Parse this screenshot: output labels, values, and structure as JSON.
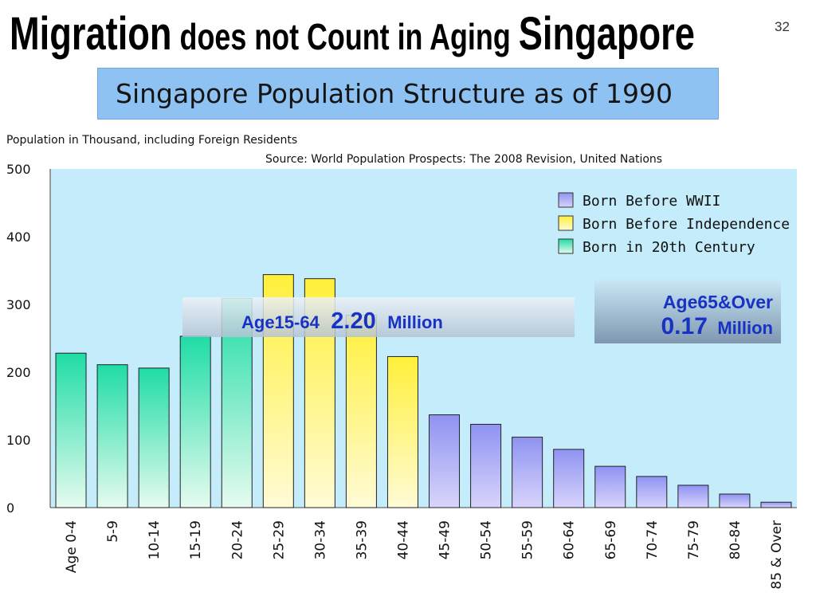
{
  "slide": {
    "title_part1": "Migration",
    "title_part2": " does not Count in Aging ",
    "title_part3": "Singapore",
    "page_number": "32",
    "subtitle": "Singapore Population Structure as of 1990"
  },
  "chart_data": {
    "type": "bar",
    "ylabel": "Population in Thousand, including Foreign Residents",
    "source": "Source: World Population Prospects: The 2008 Revision, United Nations",
    "categories": [
      "Age 0-4",
      "5-9",
      "10-14",
      "15-19",
      "20-24",
      "25-29",
      "30-34",
      "35-39",
      "40-44",
      "45-49",
      "50-54",
      "55-59",
      "60-64",
      "65-69",
      "70-74",
      "75-79",
      "80-84",
      "85 & Over"
    ],
    "values": [
      228,
      211,
      206,
      253,
      309,
      344,
      338,
      284,
      223,
      137,
      123,
      104,
      86,
      61,
      46,
      33,
      20,
      8
    ],
    "ylim": [
      0,
      500
    ],
    "yticks": [
      "0",
      "100",
      "200",
      "300",
      "400",
      "500"
    ],
    "grid": false,
    "legend_position": "top-right",
    "series": [
      {
        "name": "Born Before WWII",
        "color": "#8f93f2",
        "categories": [
          "45-49",
          "50-54",
          "55-59",
          "60-64",
          "65-69",
          "70-74",
          "75-79",
          "80-84",
          "85 & Over"
        ]
      },
      {
        "name": "Born Before Independence",
        "color": "#fff03a",
        "categories": [
          "25-29",
          "30-34",
          "35-39",
          "40-44"
        ]
      },
      {
        "name": "Born in 20th Century",
        "color": "#1fdca6",
        "categories": [
          "Age 0-4",
          "5-9",
          "10-14",
          "15-19",
          "20-24"
        ]
      }
    ],
    "annotations": {
      "working_age_label": "Age15-64",
      "working_age_value": "2.20",
      "working_age_unit": "Million",
      "elderly_label": "Age65&Over",
      "elderly_value": "0.17",
      "elderly_unit": "Million"
    },
    "colors": {
      "plot_background": "#c4ecfa",
      "annotation_text": "#1832c4"
    }
  }
}
